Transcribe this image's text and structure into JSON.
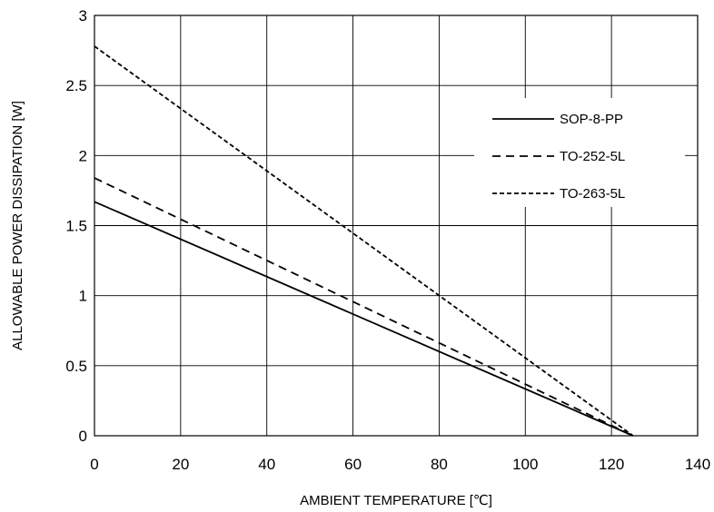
{
  "chart_data": {
    "type": "line",
    "xlabel": "AMBIENT TEMPERATURE [℃]",
    "ylabel": "ALLOWABLE POWER DISSIPATION [W]",
    "xlim": [
      0,
      140
    ],
    "ylim": [
      0,
      3
    ],
    "xticks": [
      0,
      20,
      40,
      60,
      80,
      100,
      120,
      140
    ],
    "yticks": [
      0,
      0.5,
      1,
      1.5,
      2,
      2.5,
      3
    ],
    "xtick_labels": [
      "0",
      "20",
      "40",
      "60",
      "80",
      "100",
      "120",
      "140"
    ],
    "ytick_labels": [
      "0",
      "0.5",
      "1",
      "1.5",
      "2",
      "2.5",
      "3"
    ],
    "grid": true,
    "legend_position": "upper-right",
    "series": [
      {
        "name": "SOP-8-PP",
        "style": "solid",
        "x": [
          0,
          125
        ],
        "y": [
          1.67,
          0
        ]
      },
      {
        "name": "TO-252-5L",
        "style": "dashed",
        "x": [
          0,
          125
        ],
        "y": [
          1.84,
          0
        ]
      },
      {
        "name": "TO-263-5L",
        "style": "short-dashed",
        "x": [
          0,
          125
        ],
        "y": [
          2.78,
          0
        ]
      }
    ]
  }
}
